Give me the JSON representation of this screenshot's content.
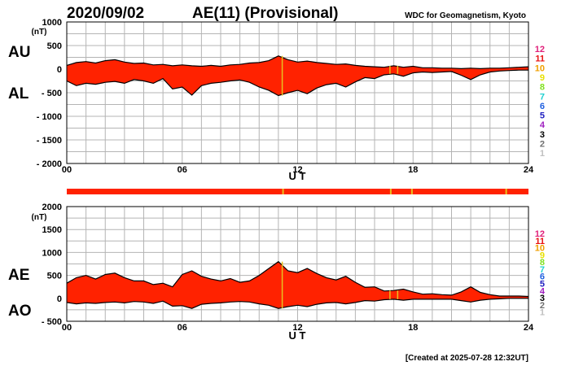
{
  "header": {
    "date": "2020/09/02",
    "index": "AE(11) (Provisional)",
    "source": "WDC for Geomagnetism, Kyoto"
  },
  "footer": {
    "created": "[Created at 2025-07-28 12:32UT]"
  },
  "colors": {
    "fill": "#ff2200",
    "gap": "#e8c020",
    "grid": "#b4b4b4"
  },
  "legend": {
    "items": [
      {
        "label": "12",
        "color": "#e0207a"
      },
      {
        "label": "11",
        "color": "#e81010"
      },
      {
        "label": "10",
        "color": "#f0a000"
      },
      {
        "label": "9",
        "color": "#e8e000"
      },
      {
        "label": "8",
        "color": "#80e020"
      },
      {
        "label": "7",
        "color": "#20d0d0"
      },
      {
        "label": "6",
        "color": "#2060e0"
      },
      {
        "label": "5",
        "color": "#2020c0"
      },
      {
        "label": "4",
        "color": "#a020c0"
      },
      {
        "label": "3",
        "color": "#000000"
      },
      {
        "label": "2",
        "color": "#707070"
      },
      {
        "label": "1",
        "color": "#c0c0c0"
      }
    ]
  },
  "chart_data": [
    {
      "type": "area",
      "name": "AU/AL",
      "labels_upper": "AU",
      "labels_lower": "AL",
      "unit": "(nT)",
      "xlabel": "U T",
      "xlim": [
        0,
        24
      ],
      "x_ticks": [
        "00",
        "06",
        "12",
        "18",
        "24"
      ],
      "ylim": [
        -2000,
        1000
      ],
      "y_ticks": [
        "1000",
        "500",
        "0",
        "- 500",
        "- 1000",
        "- 1500",
        "- 2000"
      ],
      "grid": true,
      "series": [
        {
          "name": "AU",
          "x": [
            0,
            0.5,
            1,
            1.5,
            2,
            2.5,
            3,
            3.5,
            4,
            4.5,
            5,
            5.5,
            6,
            6.5,
            7,
            7.5,
            8,
            8.5,
            9,
            9.5,
            10,
            10.5,
            11,
            11.5,
            12,
            12.5,
            13,
            13.5,
            14,
            14.5,
            15,
            15.5,
            16,
            16.5,
            17,
            17.5,
            18,
            18.5,
            19,
            19.5,
            20,
            20.5,
            21,
            21.5,
            22,
            22.5,
            23,
            23.5,
            24
          ],
          "values": [
            80,
            140,
            160,
            130,
            180,
            200,
            150,
            120,
            130,
            90,
            100,
            70,
            90,
            70,
            60,
            80,
            60,
            90,
            100,
            130,
            140,
            180,
            280,
            200,
            150,
            170,
            140,
            120,
            100,
            110,
            80,
            60,
            50,
            40,
            70,
            40,
            60,
            30,
            30,
            20,
            20,
            10,
            20,
            10,
            20,
            20,
            30,
            40,
            50
          ]
        },
        {
          "name": "AL",
          "x": [
            0,
            0.5,
            1,
            1.5,
            2,
            2.5,
            3,
            3.5,
            4,
            4.5,
            5,
            5.5,
            6,
            6.5,
            7,
            7.5,
            8,
            8.5,
            9,
            9.5,
            10,
            10.5,
            11,
            11.5,
            12,
            12.5,
            13,
            13.5,
            14,
            14.5,
            15,
            15.5,
            16,
            16.5,
            17,
            17.5,
            18,
            18.5,
            19,
            19.5,
            20,
            20.5,
            21,
            21.5,
            22,
            22.5,
            23,
            23.5,
            24
          ],
          "values": [
            -250,
            -350,
            -300,
            -320,
            -280,
            -260,
            -300,
            -220,
            -250,
            -300,
            -200,
            -420,
            -380,
            -550,
            -350,
            -300,
            -280,
            -250,
            -230,
            -280,
            -380,
            -450,
            -560,
            -500,
            -450,
            -520,
            -400,
            -330,
            -300,
            -380,
            -270,
            -180,
            -200,
            -120,
            -100,
            -150,
            -80,
            -60,
            -70,
            -60,
            -50,
            -130,
            -220,
            -120,
            -60,
            -40,
            -30,
            -20,
            -20
          ]
        }
      ]
    },
    {
      "type": "area",
      "name": "AE/AO",
      "labels_upper": "AE",
      "labels_lower": "AO",
      "unit": "(nT)",
      "xlabel": "U T",
      "xlim": [
        0,
        24
      ],
      "x_ticks": [
        "00",
        "06",
        "12",
        "18",
        "24"
      ],
      "ylim": [
        -500,
        2000
      ],
      "y_ticks": [
        "2000",
        "1500",
        "1000",
        "500",
        "0",
        "- 500"
      ],
      "grid": true,
      "series": [
        {
          "name": "AE",
          "x": [
            0,
            0.5,
            1,
            1.5,
            2,
            2.5,
            3,
            3.5,
            4,
            4.5,
            5,
            5.5,
            6,
            6.5,
            7,
            7.5,
            8,
            8.5,
            9,
            9.5,
            10,
            10.5,
            11,
            11.5,
            12,
            12.5,
            13,
            13.5,
            14,
            14.5,
            15,
            15.5,
            16,
            16.5,
            17,
            17.5,
            18,
            18.5,
            19,
            19.5,
            20,
            20.5,
            21,
            21.5,
            22,
            22.5,
            23,
            23.5,
            24
          ],
          "values": [
            330,
            450,
            500,
            420,
            520,
            550,
            450,
            380,
            380,
            300,
            330,
            250,
            520,
            600,
            480,
            420,
            380,
            430,
            350,
            380,
            500,
            650,
            800,
            600,
            560,
            650,
            540,
            450,
            400,
            480,
            350,
            240,
            250,
            160,
            170,
            200,
            140,
            90,
            100,
            80,
            70,
            140,
            250,
            130,
            80,
            50,
            50,
            50,
            40
          ]
        },
        {
          "name": "AO",
          "x": [
            0,
            0.5,
            1,
            1.5,
            2,
            2.5,
            3,
            3.5,
            4,
            4.5,
            5,
            5.5,
            6,
            6.5,
            7,
            7.5,
            8,
            8.5,
            9,
            9.5,
            10,
            10.5,
            11,
            11.5,
            12,
            12.5,
            13,
            13.5,
            14,
            14.5,
            15,
            15.5,
            16,
            16.5,
            17,
            17.5,
            18,
            18.5,
            19,
            19.5,
            20,
            20.5,
            21,
            21.5,
            22,
            22.5,
            23,
            23.5,
            24
          ],
          "values": [
            -90,
            -120,
            -100,
            -110,
            -90,
            -80,
            -100,
            -70,
            -80,
            -110,
            -60,
            -170,
            -160,
            -220,
            -130,
            -110,
            -100,
            -80,
            -70,
            -80,
            -120,
            -150,
            -220,
            -180,
            -150,
            -180,
            -130,
            -100,
            -90,
            -120,
            -90,
            -50,
            -60,
            -30,
            -20,
            -40,
            -20,
            -20,
            -20,
            -20,
            -20,
            -50,
            -80,
            -40,
            -20,
            -10,
            0,
            0,
            0
          ]
        }
      ]
    }
  ]
}
